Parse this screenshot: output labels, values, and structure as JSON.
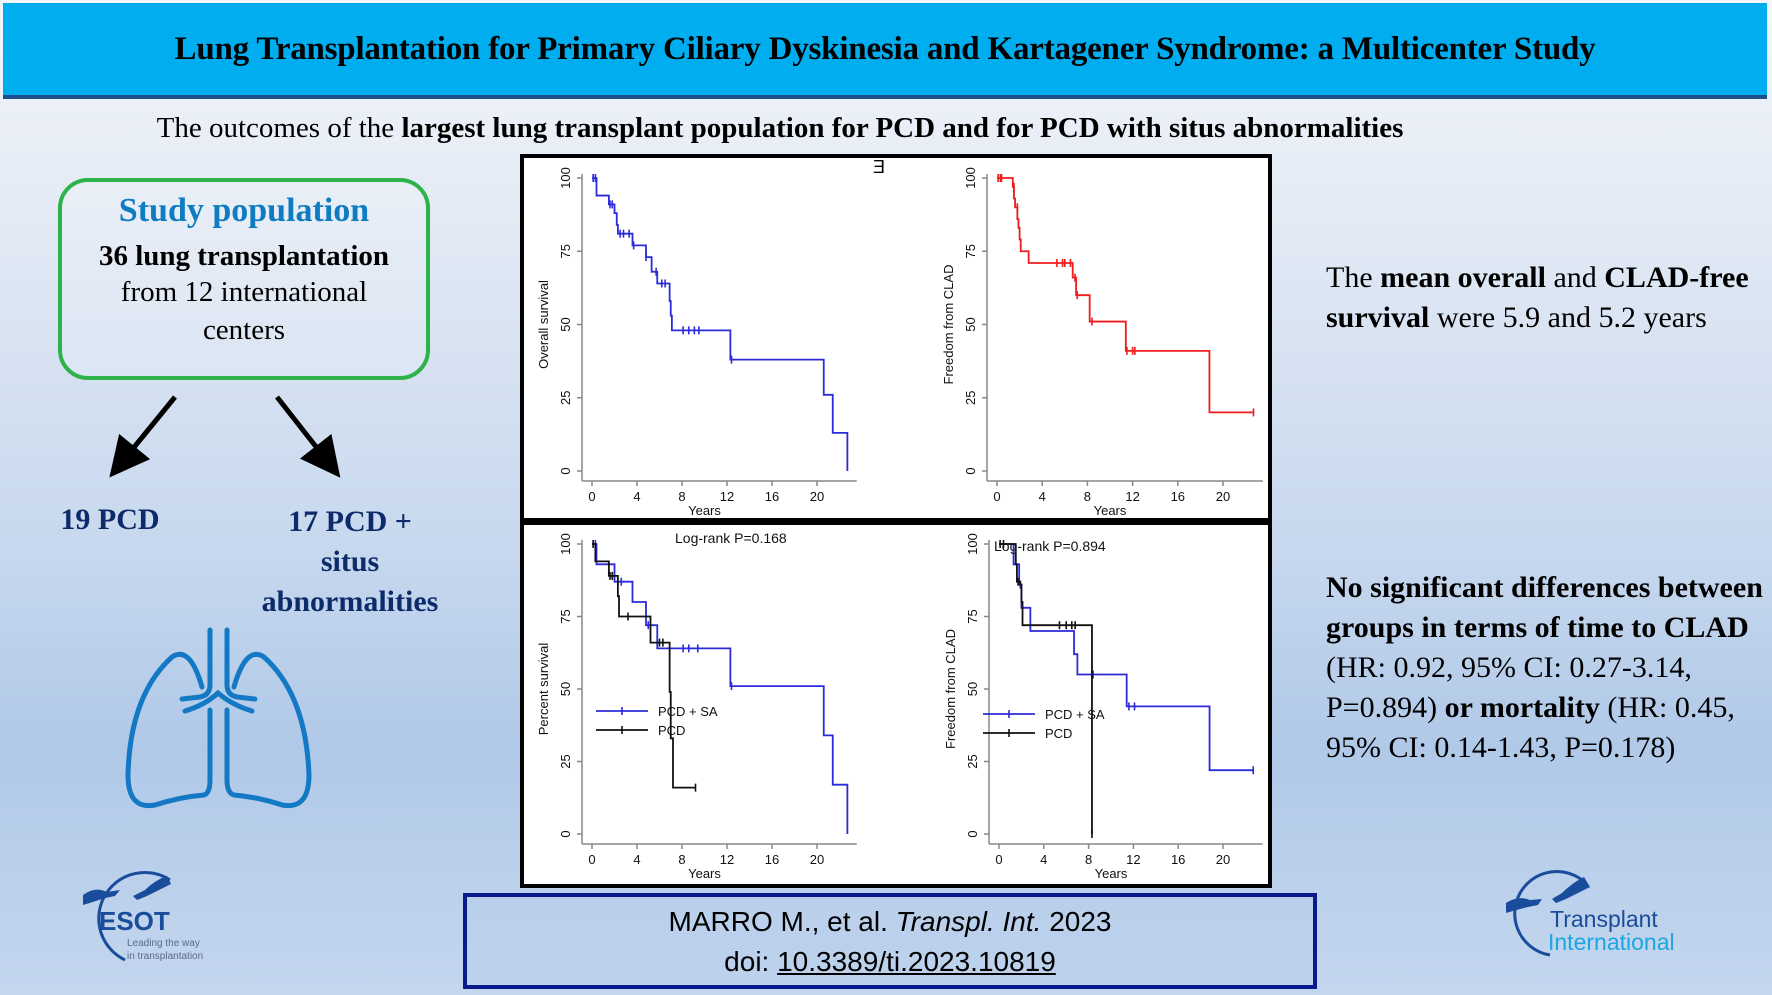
{
  "header": {
    "title": "Lung Transplantation for Primary Ciliary Dyskinesia and Kartagener Syndrome: a Multicenter Study"
  },
  "subtitle": {
    "plain": "The outcomes of the ",
    "bold": "largest lung transplant population for PCD and for PCD with situs abnormalities"
  },
  "study_population": {
    "title": "Study population",
    "line1": "36 lung transplantation",
    "line2": "from 12 international",
    "line3": "centers"
  },
  "groups": {
    "left": "19 PCD",
    "right_line1": "17 PCD +",
    "right_line2": "situs",
    "right_line3": "abnormalities"
  },
  "right_panel": {
    "text1": {
      "p1": "The ",
      "b1": "mean overall",
      "p2": " and ",
      "b2": "CLAD-free survival",
      "p3": " were 5.9 and 5.2 years"
    },
    "text2": {
      "b1": "No significant differences between  groups in terms of time to CLAD",
      "p1": " (HR: 0.92, 95% CI: 0.27-3.14, P=0.894) ",
      "b2": "or mortality",
      "p2": " (HR: 0.45, 95% CI: 0.14-1.43, P=0.178)"
    }
  },
  "citation": {
    "authors": "MARRO M., et al. ",
    "journal": "Transpl. Int.",
    "year": " 2023",
    "doi_label": "doi: ",
    "doi": "10.3389/ti.2023.10819"
  },
  "logos": {
    "esot": "ESOT",
    "esot_tagline1": "Leading the way",
    "esot_tagline2": "in transplantation",
    "ti_line1": "Transplant",
    "ti_line2": "International"
  },
  "stray_mark": "E",
  "colors": {
    "header_bg": "#00aeef",
    "study_title": "#0f7bc0",
    "study_border": "#2db34a",
    "group_text": "#0d2b6b",
    "blue_series": "#2b2bd9",
    "red_series": "#ee1c1c",
    "black_series": "#111111",
    "lung_icon": "#1479c4"
  },
  "chart_data": [
    {
      "type": "line",
      "title": "",
      "xlabel": "Years",
      "ylabel": "Overall survival",
      "xlim": [
        0,
        23
      ],
      "ylim": [
        0,
        100
      ],
      "xticks": [
        "0",
        "4",
        "8",
        "12",
        "16",
        "20"
      ],
      "yticks": [
        "0",
        "25",
        "50",
        "75",
        "100"
      ],
      "series": [
        {
          "name": "Overall survival",
          "color": "#2b2bd9",
          "steps": [
            [
              0,
              100
            ],
            [
              0.4,
              97
            ],
            [
              0.4,
              94
            ],
            [
              1.5,
              94
            ],
            [
              1.5,
              91
            ],
            [
              2.0,
              91
            ],
            [
              2.0,
              88
            ],
            [
              2.2,
              84
            ],
            [
              2.3,
              81
            ],
            [
              3.6,
              81
            ],
            [
              3.6,
              77
            ],
            [
              4.8,
              77
            ],
            [
              4.8,
              73
            ],
            [
              5.3,
              73
            ],
            [
              5.3,
              68
            ],
            [
              5.8,
              68
            ],
            [
              5.8,
              64
            ],
            [
              6.9,
              64
            ],
            [
              6.9,
              58
            ],
            [
              7.0,
              53
            ],
            [
              7.1,
              48
            ],
            [
              12.3,
              48
            ],
            [
              12.3,
              38
            ],
            [
              20.6,
              38
            ],
            [
              20.6,
              26
            ],
            [
              21.4,
              26
            ],
            [
              21.4,
              13
            ],
            [
              22.7,
              13
            ],
            [
              22.7,
              0
            ]
          ],
          "censored": [
            [
              0.1,
              100
            ],
            [
              0.3,
              100
            ],
            [
              1.6,
              91
            ],
            [
              1.8,
              91
            ],
            [
              2.5,
              81
            ],
            [
              2.8,
              81
            ],
            [
              3.3,
              81
            ],
            [
              3.7,
              77
            ],
            [
              4.8,
              73
            ],
            [
              5.7,
              68
            ],
            [
              6.2,
              64
            ],
            [
              6.5,
              64
            ],
            [
              8.1,
              48
            ],
            [
              8.6,
              48
            ],
            [
              9.1,
              48
            ],
            [
              9.5,
              48
            ],
            [
              12.4,
              38
            ]
          ]
        }
      ]
    },
    {
      "type": "line",
      "title": "",
      "xlabel": "Years",
      "ylabel": "Freedom from CLAD",
      "xlim": [
        0,
        23
      ],
      "ylim": [
        0,
        100
      ],
      "xticks": [
        "0",
        "4",
        "8",
        "12",
        "16",
        "20"
      ],
      "yticks": [
        "0",
        "25",
        "50",
        "75",
        "100"
      ],
      "series": [
        {
          "name": "Freedom from CLAD",
          "color": "#ee1c1c",
          "steps": [
            [
              0,
              100
            ],
            [
              1.4,
              100
            ],
            [
              1.4,
              97
            ],
            [
              1.5,
              93
            ],
            [
              1.6,
              90
            ],
            [
              1.8,
              86
            ],
            [
              1.9,
              83
            ],
            [
              2.0,
              79
            ],
            [
              2.1,
              75
            ],
            [
              2.8,
              75
            ],
            [
              2.8,
              71
            ],
            [
              6.7,
              71
            ],
            [
              6.7,
              66
            ],
            [
              7.0,
              66
            ],
            [
              7.0,
              60
            ],
            [
              8.2,
              60
            ],
            [
              8.2,
              51
            ],
            [
              11.4,
              51
            ],
            [
              11.4,
              41
            ],
            [
              18.8,
              41
            ],
            [
              18.8,
              20
            ],
            [
              22.7,
              20
            ]
          ],
          "censored": [
            [
              0.1,
              100
            ],
            [
              0.3,
              100
            ],
            [
              0.4,
              100
            ],
            [
              1.5,
              97
            ],
            [
              1.8,
              90
            ],
            [
              5.3,
              71
            ],
            [
              5.8,
              71
            ],
            [
              6.0,
              71
            ],
            [
              6.5,
              71
            ],
            [
              6.9,
              66
            ],
            [
              7.1,
              60
            ],
            [
              8.4,
              51
            ],
            [
              11.5,
              41
            ],
            [
              12.0,
              41
            ],
            [
              12.2,
              41
            ],
            [
              22.7,
              20
            ]
          ]
        }
      ]
    },
    {
      "type": "line",
      "title": "",
      "xlabel": "Years",
      "ylabel": "Percent survival",
      "xlim": [
        0,
        23
      ],
      "ylim": [
        0,
        100
      ],
      "xticks": [
        "0",
        "4",
        "8",
        "12",
        "16",
        "20"
      ],
      "yticks": [
        "0",
        "25",
        "50",
        "75",
        "100"
      ],
      "annotation": "Log-rank P=0.168",
      "legend": "bottom-left",
      "series": [
        {
          "name": "PCD + SA",
          "color": "#2b2bd9",
          "steps": [
            [
              0,
              100
            ],
            [
              0.4,
              100
            ],
            [
              0.4,
              93
            ],
            [
              2.0,
              93
            ],
            [
              2.0,
              87
            ],
            [
              3.6,
              87
            ],
            [
              3.6,
              80
            ],
            [
              4.8,
              80
            ],
            [
              4.8,
              72
            ],
            [
              5.8,
              72
            ],
            [
              5.8,
              64
            ],
            [
              12.3,
              64
            ],
            [
              12.3,
              51
            ],
            [
              20.6,
              51
            ],
            [
              20.6,
              34
            ],
            [
              21.4,
              34
            ],
            [
              21.4,
              17
            ],
            [
              22.7,
              17
            ],
            [
              22.7,
              0
            ]
          ],
          "censored": [
            [
              0.3,
              100
            ],
            [
              2.6,
              87
            ],
            [
              5.0,
              72
            ],
            [
              8.1,
              64
            ],
            [
              8.6,
              64
            ],
            [
              9.4,
              64
            ],
            [
              12.4,
              51
            ]
          ]
        },
        {
          "name": "PCD",
          "color": "#111111",
          "steps": [
            [
              0,
              100
            ],
            [
              0.3,
              100
            ],
            [
              0.3,
              94
            ],
            [
              1.5,
              94
            ],
            [
              1.5,
              89
            ],
            [
              2.3,
              89
            ],
            [
              2.3,
              82
            ],
            [
              2.4,
              75
            ],
            [
              5.2,
              75
            ],
            [
              5.2,
              66
            ],
            [
              6.9,
              66
            ],
            [
              6.9,
              49
            ],
            [
              7.0,
              49
            ],
            [
              7.0,
              33
            ],
            [
              7.2,
              33
            ],
            [
              7.2,
              16
            ],
            [
              9.2,
              16
            ]
          ],
          "censored": [
            [
              0.1,
              100
            ],
            [
              1.6,
              89
            ],
            [
              1.8,
              89
            ],
            [
              3.2,
              75
            ],
            [
              6.0,
              66
            ],
            [
              6.3,
              66
            ],
            [
              9.2,
              16
            ]
          ]
        }
      ]
    },
    {
      "type": "line",
      "title": "",
      "xlabel": "Years",
      "ylabel": "Freedom from CLAD",
      "xlim": [
        0,
        23
      ],
      "ylim": [
        0,
        100
      ],
      "xticks": [
        "0",
        "4",
        "8",
        "12",
        "16",
        "20"
      ],
      "yticks": [
        "0",
        "25",
        "50",
        "75",
        "100"
      ],
      "annotation": "Log-rank P=0.894",
      "legend": "bottom-right",
      "series": [
        {
          "name": "PCD + SA",
          "color": "#2b2bd9",
          "steps": [
            [
              0,
              100
            ],
            [
              1.3,
              100
            ],
            [
              1.3,
              93
            ],
            [
              1.8,
              93
            ],
            [
              1.8,
              86
            ],
            [
              2.0,
              86
            ],
            [
              2.0,
              78
            ],
            [
              2.8,
              78
            ],
            [
              2.8,
              70
            ],
            [
              6.7,
              70
            ],
            [
              6.7,
              62
            ],
            [
              7.0,
              62
            ],
            [
              7.0,
              55
            ],
            [
              11.4,
              55
            ],
            [
              11.4,
              44
            ],
            [
              18.8,
              44
            ],
            [
              18.8,
              22
            ],
            [
              22.7,
              22
            ]
          ],
          "censored": [
            [
              1.9,
              86
            ],
            [
              8.4,
              55
            ],
            [
              11.6,
              44
            ],
            [
              12.1,
              44
            ],
            [
              22.7,
              22
            ]
          ]
        },
        {
          "name": "PCD",
          "color": "#111111",
          "steps": [
            [
              0,
              100
            ],
            [
              1.5,
              100
            ],
            [
              1.5,
              93
            ],
            [
              1.6,
              87
            ],
            [
              1.9,
              86
            ],
            [
              2.0,
              80
            ],
            [
              2.1,
              72
            ],
            [
              8.3,
              72
            ],
            [
              8.3,
              0
            ]
          ],
          "censored": [
            [
              0.1,
              100
            ],
            [
              0.4,
              100
            ],
            [
              1.7,
              87
            ],
            [
              5.4,
              72
            ],
            [
              6.0,
              72
            ],
            [
              6.5,
              72
            ],
            [
              6.8,
              72
            ],
            [
              8.3,
              0
            ]
          ]
        }
      ]
    }
  ]
}
